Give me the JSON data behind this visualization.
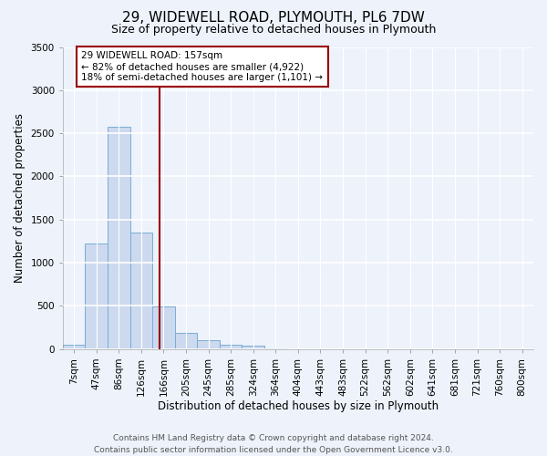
{
  "title": "29, WIDEWELL ROAD, PLYMOUTH, PL6 7DW",
  "subtitle": "Size of property relative to detached houses in Plymouth",
  "xlabel": "Distribution of detached houses by size in Plymouth",
  "ylabel": "Number of detached properties",
  "categories": [
    "7sqm",
    "47sqm",
    "86sqm",
    "126sqm",
    "166sqm",
    "205sqm",
    "245sqm",
    "285sqm",
    "324sqm",
    "364sqm",
    "404sqm",
    "443sqm",
    "483sqm",
    "522sqm",
    "562sqm",
    "602sqm",
    "641sqm",
    "681sqm",
    "721sqm",
    "760sqm",
    "800sqm"
  ],
  "values": [
    50,
    1220,
    2580,
    1350,
    490,
    185,
    100,
    50,
    40,
    5,
    0,
    0,
    0,
    0,
    0,
    0,
    0,
    0,
    0,
    0,
    0
  ],
  "bar_color": "#ccd9ee",
  "bar_edgecolor": "#7aadd4",
  "vline_color": "#990000",
  "vline_x": 3.82,
  "ylim": [
    0,
    3500
  ],
  "yticks": [
    0,
    500,
    1000,
    1500,
    2000,
    2500,
    3000,
    3500
  ],
  "annotation_text": "29 WIDEWELL ROAD: 157sqm\n← 82% of detached houses are smaller (4,922)\n18% of semi-detached houses are larger (1,101) →",
  "annotation_box_facecolor": "#ffffff",
  "annotation_box_edgecolor": "#990000",
  "footer_line1": "Contains HM Land Registry data © Crown copyright and database right 2024.",
  "footer_line2": "Contains public sector information licensed under the Open Government Licence v3.0.",
  "background_color": "#edf2fb",
  "grid_color": "#ffffff",
  "title_fontsize": 11,
  "subtitle_fontsize": 9,
  "axis_label_fontsize": 8.5,
  "tick_fontsize": 7.5,
  "footer_fontsize": 6.5,
  "annotation_fontsize": 7.5
}
